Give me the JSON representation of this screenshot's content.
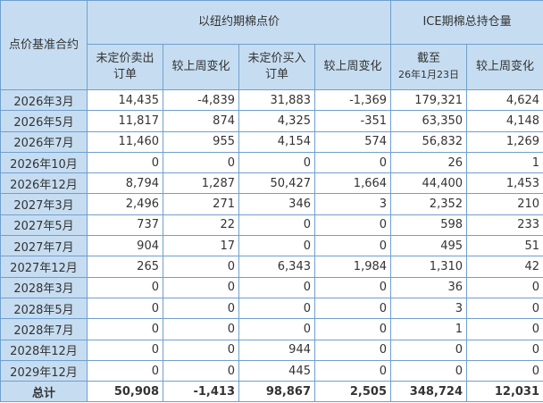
{
  "header": {
    "contract": "点价基准合约",
    "group1": "以纽约期棉点价",
    "group2": "ICE期棉总持仓量",
    "cols": [
      "未定价卖出订单",
      "较上周变化",
      "未定价买入订单",
      "较上周变化",
      "截至",
      "较上周变化"
    ],
    "col1_line1": "未定价卖出",
    "col1_line2": "订单",
    "col3_line1": "未定价买入",
    "col3_line2": "订单",
    "asof_date": "26年1月23日"
  },
  "rows": [
    {
      "contract": "2026年3月",
      "values": [
        "14,435",
        "-4,839",
        "31,883",
        "-1,369",
        "179,321",
        "4,624"
      ]
    },
    {
      "contract": "2026年5月",
      "values": [
        "11,817",
        "874",
        "4,325",
        "-351",
        "63,350",
        "4,148"
      ]
    },
    {
      "contract": "2026年7月",
      "values": [
        "11,460",
        "955",
        "4,154",
        "574",
        "56,832",
        "1,269"
      ]
    },
    {
      "contract": "2026年10月",
      "values": [
        "0",
        "0",
        "0",
        "0",
        "26",
        "1"
      ]
    },
    {
      "contract": "2026年12月",
      "values": [
        "8,794",
        "1,287",
        "50,427",
        "1,664",
        "44,400",
        "1,453"
      ]
    },
    {
      "contract": "2027年3月",
      "values": [
        "2,496",
        "271",
        "346",
        "3",
        "2,352",
        "210"
      ]
    },
    {
      "contract": "2027年5月",
      "values": [
        "737",
        "22",
        "0",
        "0",
        "598",
        "233"
      ]
    },
    {
      "contract": "2027年7月",
      "values": [
        "904",
        "17",
        "0",
        "0",
        "495",
        "51"
      ]
    },
    {
      "contract": "2027年12月",
      "values": [
        "265",
        "0",
        "6,343",
        "1,984",
        "1,310",
        "42"
      ]
    },
    {
      "contract": "2028年3月",
      "values": [
        "0",
        "0",
        "0",
        "0",
        "36",
        "0"
      ]
    },
    {
      "contract": "2028年5月",
      "values": [
        "0",
        "0",
        "0",
        "0",
        "3",
        "0"
      ]
    },
    {
      "contract": "2028年7月",
      "values": [
        "0",
        "0",
        "0",
        "0",
        "1",
        "0"
      ]
    },
    {
      "contract": "2028年12月",
      "values": [
        "0",
        "0",
        "944",
        "0",
        "0",
        "0"
      ]
    },
    {
      "contract": "2029年12月",
      "values": [
        "0",
        "0",
        "445",
        "0",
        "0",
        "0"
      ]
    }
  ],
  "total": {
    "contract": "总计",
    "values": [
      "50,908",
      "-1,413",
      "98,867",
      "2,505",
      "348,724",
      "12,031"
    ]
  },
  "colors": {
    "header_bg": "#c6ddf1",
    "border": "#6f9fcf"
  }
}
